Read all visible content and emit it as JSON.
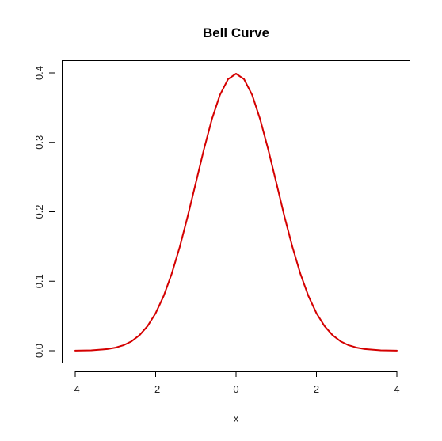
{
  "chart_data": {
    "type": "line",
    "title": "Bell Curve",
    "xlabel": "x",
    "ylabel": "",
    "xlim": [
      -4,
      4
    ],
    "ylim": [
      0,
      0.4
    ],
    "x_ticks": [
      -4,
      -2,
      0,
      2,
      4
    ],
    "x_tick_labels": [
      "-4",
      "-2",
      "0",
      "2",
      "4"
    ],
    "y_ticks": [
      0.0,
      0.1,
      0.2,
      0.3,
      0.4
    ],
    "y_tick_labels": [
      "0.0",
      "0.1",
      "0.2",
      "0.3",
      "0.4"
    ],
    "grid": false,
    "color": "#d40000",
    "series": [
      {
        "x": [
          -4.0,
          -3.6,
          -3.2,
          -3.0,
          -2.8,
          -2.6,
          -2.4,
          -2.2,
          -2.0,
          -1.8,
          -1.6,
          -1.4,
          -1.2,
          -1.0,
          -0.8,
          -0.6,
          -0.4,
          -0.2,
          0.0,
          0.2,
          0.4,
          0.6,
          0.8,
          1.0,
          1.2,
          1.4,
          1.6,
          1.8,
          2.0,
          2.2,
          2.4,
          2.6,
          2.8,
          3.0,
          3.2,
          3.6,
          4.0
        ],
        "values": [
          0.0001,
          0.0006,
          0.0024,
          0.0044,
          0.0079,
          0.0136,
          0.0224,
          0.0355,
          0.054,
          0.079,
          0.1109,
          0.1497,
          0.1942,
          0.242,
          0.2897,
          0.3332,
          0.3683,
          0.391,
          0.3989,
          0.391,
          0.3683,
          0.3332,
          0.2897,
          0.242,
          0.1942,
          0.1497,
          0.1109,
          0.079,
          0.054,
          0.0355,
          0.0224,
          0.0136,
          0.0079,
          0.0044,
          0.0024,
          0.0006,
          0.0001
        ]
      }
    ]
  }
}
